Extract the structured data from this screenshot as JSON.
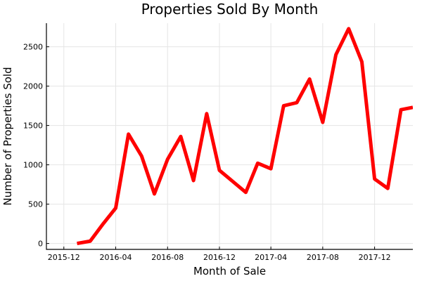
{
  "chart_data": {
    "type": "line",
    "title": "Properties Sold By Month",
    "xlabel": "Month of Sale",
    "ylabel": "Number of Properties Sold",
    "xlim": [
      "2015-10-21",
      "2018-03-01"
    ],
    "ylim": [
      -75,
      2800
    ],
    "grid": true,
    "legend": "none",
    "x_ticks": [
      "2015-12",
      "2016-04",
      "2016-08",
      "2016-12",
      "2017-04",
      "2017-08",
      "2017-12"
    ],
    "y_ticks": [
      0,
      500,
      1000,
      1500,
      2000,
      2500
    ],
    "series": [
      {
        "color": "#ff0000",
        "x": [
          "2016-01-01",
          "2016-02-01",
          "2016-03-01",
          "2016-04-01",
          "2016-05-01",
          "2016-06-01",
          "2016-07-01",
          "2016-08-01",
          "2016-09-01",
          "2016-10-01",
          "2016-11-01",
          "2016-12-01",
          "2017-01-01",
          "2017-02-01",
          "2017-03-01",
          "2017-04-01",
          "2017-05-01",
          "2017-06-01",
          "2017-07-01",
          "2017-08-01",
          "2017-09-01",
          "2017-10-01",
          "2017-11-01",
          "2017-12-01",
          "2018-01-01",
          "2018-02-01",
          "2018-03-01"
        ],
        "values": [
          0,
          30,
          240,
          450,
          1390,
          1110,
          630,
          1070,
          1360,
          800,
          1650,
          930,
          790,
          650,
          1020,
          950,
          1750,
          1790,
          2090,
          1540,
          2400,
          2730,
          2310,
          820,
          700,
          1700,
          1730
        ]
      }
    ]
  }
}
